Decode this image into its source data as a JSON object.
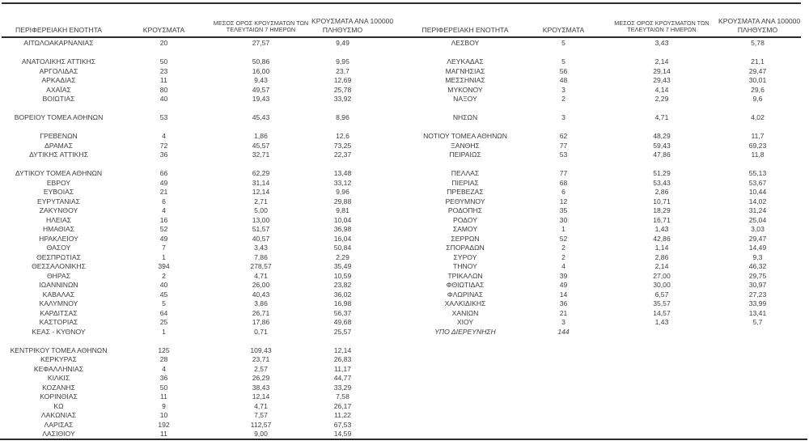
{
  "colors": {
    "background": "#ffffff",
    "text": "#3d3d3d",
    "line": "#2b2b2b"
  },
  "columns": {
    "region": "ΠΕΡΙΦΕΡΕΙΑΚΗ ΕΝΟΤΗΤΑ",
    "cases": "ΚΡΟΥΣΜΑΤΑ",
    "avg7_line1": "ΜΕΣΟΣ ΟΡΟΣ ΚΡΟΥΣΜΑΤΩΝ ΤΩΝ",
    "avg7_line2": "ΤΕΛΕΥΤΑΙΩΝ 7 ΗΜΕΡΩΝ",
    "per100k_line1": "ΚΡΟΥΣΜΑΤΑ ΑΝΑ 100000",
    "per100k_line2": "ΠΛΗΘΥΣΜΟ"
  },
  "left_table": {
    "rows": [
      {
        "name": "ΑΙΤΩΛΟΑΚΑΡΝΑΝΙΑΣ",
        "cases": "20",
        "avg7": "27,57",
        "per100k": "9,49"
      },
      {
        "spacer": true
      },
      {
        "name": "ΑΝΑΤΟΛΙΚΗΣ ΑΤΤΙΚΗΣ",
        "cases": "50",
        "avg7": "50,86",
        "per100k": "9,95"
      },
      {
        "name": "ΑΡΓΟΛΙΔΑΣ",
        "cases": "23",
        "avg7": "16,00",
        "per100k": "23,7"
      },
      {
        "name": "ΑΡΚΑΔΙΑΣ",
        "cases": "11",
        "avg7": "9,43",
        "per100k": "12,69"
      },
      {
        "name": "ΑΧΑΪΑΣ",
        "cases": "80",
        "avg7": "49,57",
        "per100k": "25,78"
      },
      {
        "name": "ΒΟΙΩΤΙΑΣ",
        "cases": "40",
        "avg7": "19,43",
        "per100k": "33,92"
      },
      {
        "spacer": true
      },
      {
        "name": "ΒΟΡΕΙΟΥ ΤΟΜΕΑ ΑΘΗΝΩΝ",
        "cases": "53",
        "avg7": "45,43",
        "per100k": "8,96"
      },
      {
        "spacer": true
      },
      {
        "name": "ΓΡΕΒΕΝΩΝ",
        "cases": "4",
        "avg7": "1,86",
        "per100k": "12,6"
      },
      {
        "name": "ΔΡΑΜΑΣ",
        "cases": "72",
        "avg7": "45,57",
        "per100k": "73,25"
      },
      {
        "name": "ΔΥΤΙΚΗΣ ΑΤΤΙΚΗΣ",
        "cases": "36",
        "avg7": "32,71",
        "per100k": "22,37"
      },
      {
        "spacer": true
      },
      {
        "name": "ΔΥΤΙΚΟΥ ΤΟΜΕΑ ΑΘΗΝΩΝ",
        "cases": "66",
        "avg7": "62,29",
        "per100k": "13,48"
      },
      {
        "name": "ΕΒΡΟΥ",
        "cases": "49",
        "avg7": "31,14",
        "per100k": "33,12"
      },
      {
        "name": "ΕΥΒΟΙΑΣ",
        "cases": "21",
        "avg7": "12,14",
        "per100k": "9,96"
      },
      {
        "name": "ΕΥΡΥΤΑΝΙΑΣ",
        "cases": "6",
        "avg7": "2,71",
        "per100k": "29,88"
      },
      {
        "name": "ΖΑΚΥΝΘΟΥ",
        "cases": "4",
        "avg7": "5,00",
        "per100k": "9,81"
      },
      {
        "name": "ΗΛΕΙΑΣ",
        "cases": "16",
        "avg7": "13,00",
        "per100k": "10,04"
      },
      {
        "name": "ΗΜΑΘΙΑΣ",
        "cases": "52",
        "avg7": "51,57",
        "per100k": "36,98"
      },
      {
        "name": "ΗΡΑΚΛΕΙΟΥ",
        "cases": "49",
        "avg7": "40,57",
        "per100k": "16,04"
      },
      {
        "name": "ΘΑΣΟΥ",
        "cases": "7",
        "avg7": "3,43",
        "per100k": "50,84"
      },
      {
        "name": "ΘΕΣΠΡΩΤΙΑΣ",
        "cases": "1",
        "avg7": "7,86",
        "per100k": "2,29"
      },
      {
        "name": "ΘΕΣΣΑΛΟΝΙΚΗΣ",
        "cases": "394",
        "avg7": "278,57",
        "per100k": "35,49"
      },
      {
        "name": "ΘΗΡΑΣ",
        "cases": "2",
        "avg7": "4,71",
        "per100k": "10,59"
      },
      {
        "name": "ΙΩΑΝΝΙΝΩΝ",
        "cases": "40",
        "avg7": "26,00",
        "per100k": "23,82"
      },
      {
        "name": "ΚΑΒΑΛΑΣ",
        "cases": "45",
        "avg7": "40,43",
        "per100k": "36,02"
      },
      {
        "name": "ΚΑΛΥΜΝΟΥ",
        "cases": "5",
        "avg7": "3,86",
        "per100k": "16,98"
      },
      {
        "name": "ΚΑΡΔΙΤΣΑΣ",
        "cases": "64",
        "avg7": "26,71",
        "per100k": "56,37"
      },
      {
        "name": "ΚΑΣΤΟΡΙΑΣ",
        "cases": "25",
        "avg7": "17,86",
        "per100k": "49,68"
      },
      {
        "name": "ΚΕΑΣ - ΚΥΘΝΟΥ",
        "cases": "1",
        "avg7": "0,71",
        "per100k": "25,57"
      },
      {
        "spacer": true
      },
      {
        "name": "ΚΕΝΤΡΙΚΟΥ ΤΟΜΕΑ ΑΘΗΝΩΝ",
        "cases": "125",
        "avg7": "109,43",
        "per100k": "12,14"
      },
      {
        "name": "ΚΕΡΚΥΡΑΣ",
        "cases": "28",
        "avg7": "23,71",
        "per100k": "26,83"
      },
      {
        "name": "ΚΕΦΑΛΛΗΝΙΑΣ",
        "cases": "4",
        "avg7": "2,57",
        "per100k": "11,17"
      },
      {
        "name": "ΚΙΛΚΙΣ",
        "cases": "36",
        "avg7": "26,29",
        "per100k": "44,77"
      },
      {
        "name": "ΚΟΖΑΝΗΣ",
        "cases": "50",
        "avg7": "38,43",
        "per100k": "33,29"
      },
      {
        "name": "ΚΟΡΙΝΘΙΑΣ",
        "cases": "11",
        "avg7": "12,14",
        "per100k": "7,58"
      },
      {
        "name": "ΚΩ",
        "cases": "9",
        "avg7": "4,71",
        "per100k": "26,17"
      },
      {
        "name": "ΛΑΚΩΝΙΑΣ",
        "cases": "10",
        "avg7": "7,57",
        "per100k": "11,22"
      },
      {
        "name": "ΛΑΡΙΣΑΣ",
        "cases": "192",
        "avg7": "112,57",
        "per100k": "67,53"
      },
      {
        "name": "ΛΑΣΙΘΙΟΥ",
        "cases": "11",
        "avg7": "9,00",
        "per100k": "14,59"
      }
    ]
  },
  "right_table": {
    "rows": [
      {
        "name": "ΛΕΣΒΟΥ",
        "cases": "5",
        "avg7": "3,43",
        "per100k": "5,78"
      },
      {
        "spacer": true
      },
      {
        "name": "ΛΕΥΚΑΔΑΣ",
        "cases": "5",
        "avg7": "2,14",
        "per100k": "21,1"
      },
      {
        "name": "ΜΑΓΝΗΣΙΑΣ",
        "cases": "56",
        "avg7": "29,14",
        "per100k": "29,47"
      },
      {
        "name": "ΜΕΣΣΗΝΙΑΣ",
        "cases": "48",
        "avg7": "29,43",
        "per100k": "30,01"
      },
      {
        "name": "ΜΥΚΟΝΟΥ",
        "cases": "3",
        "avg7": "4,14",
        "per100k": "29,6"
      },
      {
        "name": "ΝΑΞΟΥ",
        "cases": "2",
        "avg7": "2,29",
        "per100k": "9,6"
      },
      {
        "spacer": true
      },
      {
        "name": "ΝΗΣΩΝ",
        "cases": "3",
        "avg7": "4,71",
        "per100k": "4,02"
      },
      {
        "spacer": true
      },
      {
        "name": "ΝΟΤΙΟΥ ΤΟΜΕΑ ΑΘΗΝΩΝ",
        "cases": "62",
        "avg7": "48,29",
        "per100k": "11,7"
      },
      {
        "name": "ΞΑΝΘΗΣ",
        "cases": "77",
        "avg7": "59,43",
        "per100k": "69,23"
      },
      {
        "name": "ΠΕΙΡΑΙΩΣ",
        "cases": "53",
        "avg7": "47,86",
        "per100k": "11,8"
      },
      {
        "spacer": true
      },
      {
        "name": "ΠΕΛΛΑΣ",
        "cases": "77",
        "avg7": "51,29",
        "per100k": "55,13"
      },
      {
        "name": "ΠΙΕΡΙΑΣ",
        "cases": "68",
        "avg7": "53,43",
        "per100k": "53,67"
      },
      {
        "name": "ΠΡΕΒΕΖΑΣ",
        "cases": "6",
        "avg7": "2,86",
        "per100k": "10,44"
      },
      {
        "name": "ΡΕΘΥΜΝΟΥ",
        "cases": "12",
        "avg7": "10,71",
        "per100k": "14,02"
      },
      {
        "name": "ΡΟΔΟΠΗΣ",
        "cases": "35",
        "avg7": "18,29",
        "per100k": "31,24"
      },
      {
        "name": "ΡΟΔΟΥ",
        "cases": "30",
        "avg7": "16,71",
        "per100k": "25,04"
      },
      {
        "name": "ΣΑΜΟΥ",
        "cases": "1",
        "avg7": "1,43",
        "per100k": "3,03"
      },
      {
        "name": "ΣΕΡΡΩΝ",
        "cases": "52",
        "avg7": "42,86",
        "per100k": "29,47"
      },
      {
        "name": "ΣΠΟΡΑΔΩΝ",
        "cases": "2",
        "avg7": "1,14",
        "per100k": "14,49"
      },
      {
        "name": "ΣΥΡΟΥ",
        "cases": "2",
        "avg7": "2,86",
        "per100k": "9,3"
      },
      {
        "name": "ΤΗΝΟΥ",
        "cases": "4",
        "avg7": "2,14",
        "per100k": "46,32"
      },
      {
        "name": "ΤΡΙΚΑΛΩΝ",
        "cases": "39",
        "avg7": "27,00",
        "per100k": "29,75"
      },
      {
        "name": "ΦΘΙΩΤΙΔΑΣ",
        "cases": "49",
        "avg7": "30,00",
        "per100k": "30,97"
      },
      {
        "name": "ΦΛΩΡΙΝΑΣ",
        "cases": "14",
        "avg7": "6,57",
        "per100k": "27,23"
      },
      {
        "name": "ΧΑΛΚΙΔΙΚΗΣ",
        "cases": "36",
        "avg7": "35,57",
        "per100k": "33,99"
      },
      {
        "name": "ΧΑΝΙΩΝ",
        "cases": "21",
        "avg7": "14,57",
        "per100k": "13,41"
      },
      {
        "name": "ΧΙΟΥ",
        "cases": "3",
        "avg7": "1,43",
        "per100k": "5,7"
      },
      {
        "name": "ΥΠΟ ΔΙΕΡΕΥΝΗΣΗ",
        "cases": "144",
        "avg7": "",
        "per100k": "",
        "italic": true
      }
    ]
  }
}
